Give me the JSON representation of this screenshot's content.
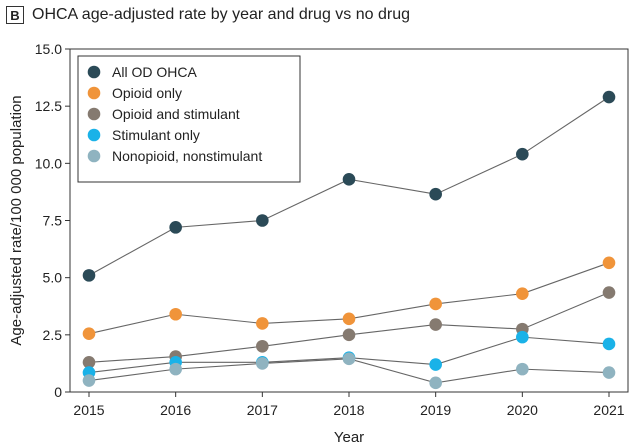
{
  "panel_label": "B",
  "chart_data": {
    "type": "line",
    "title": "OHCA age-adjusted rate by year and drug vs no drug",
    "xlabel": "Year",
    "ylabel": "Age-adjusted rate/100 000 population",
    "x": [
      2015,
      2016,
      2017,
      2018,
      2019,
      2020,
      2021
    ],
    "x_tick_labels": [
      "2015",
      "2016",
      "2017",
      "2018",
      "2019",
      "2020",
      "2021"
    ],
    "ylim": [
      0,
      15
    ],
    "y_ticks": [
      0,
      2.5,
      5,
      7.5,
      10,
      12.5,
      15
    ],
    "y_tick_labels": [
      "0",
      "2.5",
      "5.0",
      "7.5",
      "10.0",
      "12.5",
      "15.0"
    ],
    "grid": false,
    "legend_position": "top-left",
    "series": [
      {
        "name": "All OD OHCA",
        "color": "#2b4a57",
        "values": [
          5.1,
          7.2,
          7.5,
          9.3,
          8.65,
          10.4,
          12.9
        ]
      },
      {
        "name": "Opioid only",
        "color": "#f0943a",
        "values": [
          2.55,
          3.4,
          3.0,
          3.2,
          3.85,
          4.3,
          5.65
        ]
      },
      {
        "name": "Opioid and stimulant",
        "color": "#857a70",
        "values": [
          1.3,
          1.55,
          2.0,
          2.5,
          2.95,
          2.75,
          4.35
        ]
      },
      {
        "name": "Stimulant only",
        "color": "#1ab2e8",
        "values": [
          0.85,
          1.3,
          1.3,
          1.5,
          1.2,
          2.4,
          2.1
        ]
      },
      {
        "name": "Nonopioid, nonstimulant",
        "color": "#8fb3c0",
        "values": [
          0.5,
          1.0,
          1.25,
          1.45,
          0.4,
          1.0,
          0.85
        ]
      }
    ]
  }
}
